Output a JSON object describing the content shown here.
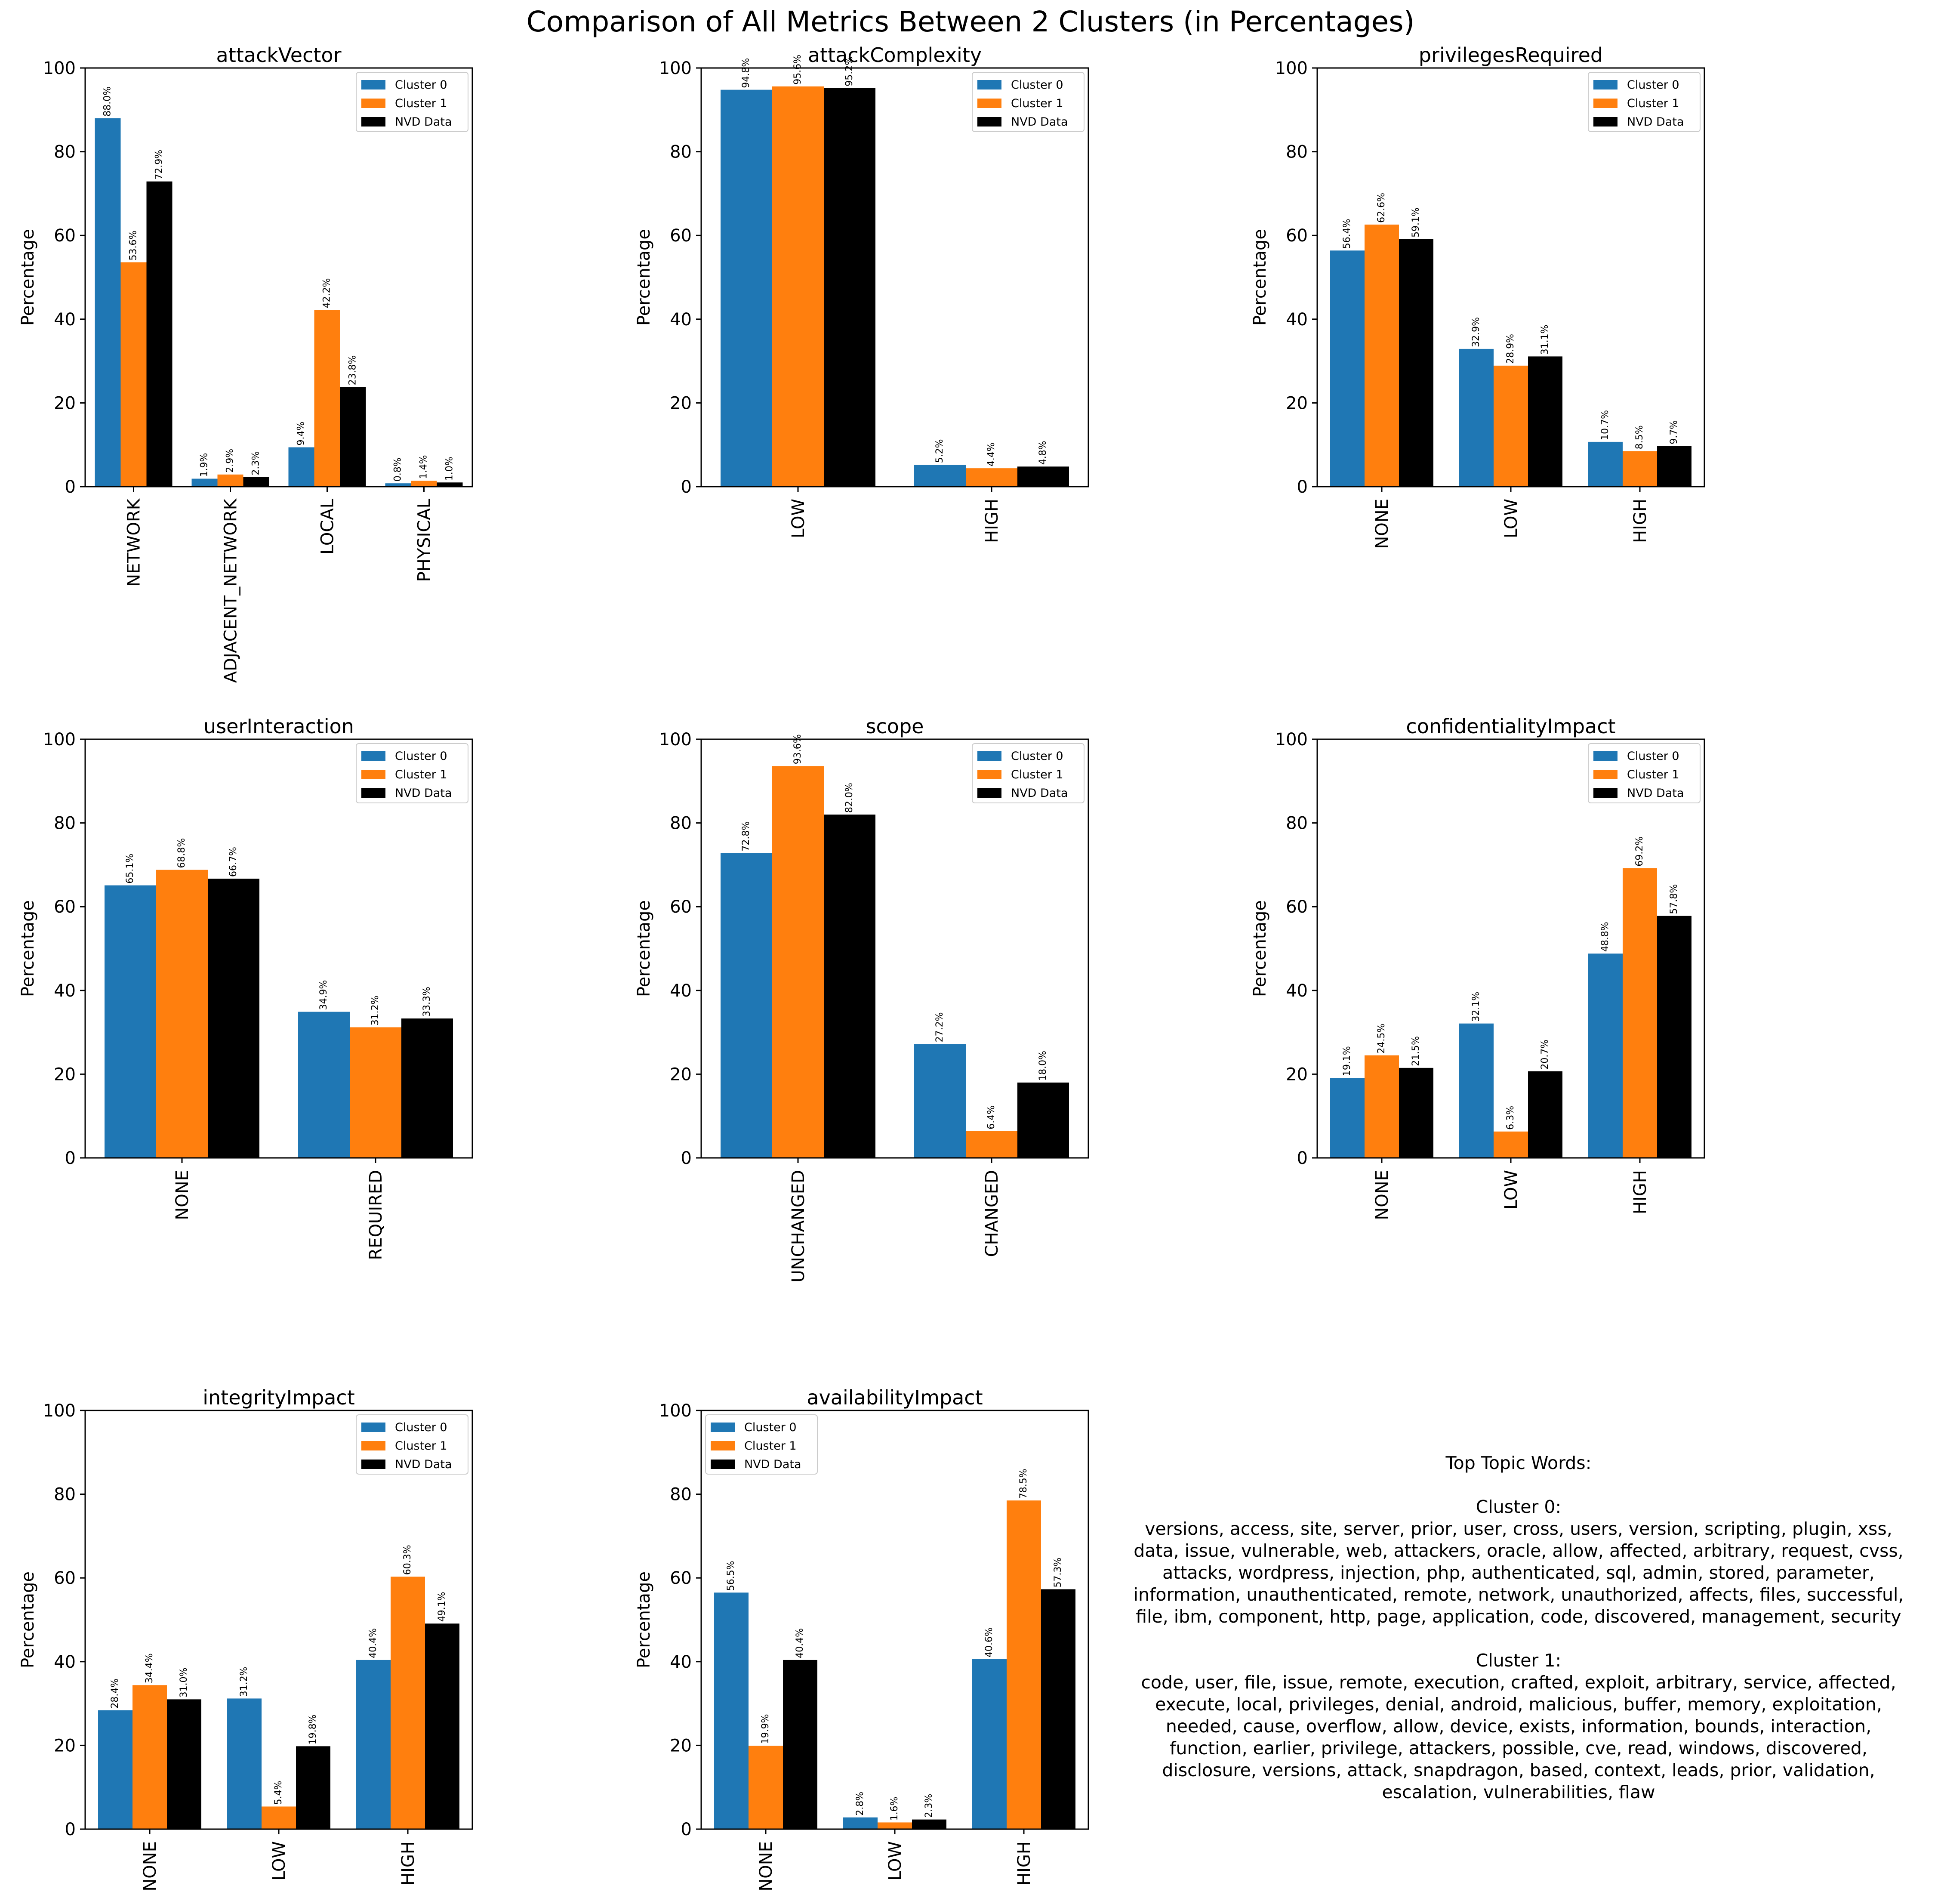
{
  "figure": {
    "title": "Comparison of All Metrics Between 2 Clusters (in Percentages)"
  },
  "colors": {
    "Cluster 0": "#1f77b4",
    "Cluster 1": "#ff7f0e",
    "NVD Data": "#000000"
  },
  "chart_data": [
    {
      "type": "bar",
      "title": "attackVector",
      "ylabel": "Percentage",
      "ylim": [
        0,
        100
      ],
      "yticks": [
        0,
        20,
        40,
        60,
        80,
        100
      ],
      "legend": "upper right",
      "categories": [
        "NETWORK",
        "ADJACENT_NETWORK",
        "LOCAL",
        "PHYSICAL"
      ],
      "series": [
        {
          "name": "Cluster 0",
          "values": [
            88.0,
            1.9,
            9.4,
            0.8
          ]
        },
        {
          "name": "Cluster 1",
          "values": [
            53.6,
            2.9,
            42.2,
            1.4
          ]
        },
        {
          "name": "NVD Data",
          "values": [
            72.9,
            2.3,
            23.8,
            1.0
          ]
        }
      ]
    },
    {
      "type": "bar",
      "title": "attackComplexity",
      "ylabel": "Percentage",
      "ylim": [
        0,
        100
      ],
      "yticks": [
        0,
        20,
        40,
        60,
        80,
        100
      ],
      "legend": "upper right",
      "categories": [
        "LOW",
        "HIGH"
      ],
      "series": [
        {
          "name": "Cluster 0",
          "values": [
            94.8,
            5.2
          ]
        },
        {
          "name": "Cluster 1",
          "values": [
            95.6,
            4.4
          ]
        },
        {
          "name": "NVD Data",
          "values": [
            95.2,
            4.8
          ]
        }
      ]
    },
    {
      "type": "bar",
      "title": "privilegesRequired",
      "ylabel": "Percentage",
      "ylim": [
        0,
        100
      ],
      "yticks": [
        0,
        20,
        40,
        60,
        80,
        100
      ],
      "legend": "upper right",
      "categories": [
        "NONE",
        "LOW",
        "HIGH"
      ],
      "series": [
        {
          "name": "Cluster 0",
          "values": [
            56.4,
            32.9,
            10.7
          ]
        },
        {
          "name": "Cluster 1",
          "values": [
            62.6,
            28.9,
            8.5
          ]
        },
        {
          "name": "NVD Data",
          "values": [
            59.1,
            31.1,
            9.7
          ]
        }
      ]
    },
    {
      "type": "bar",
      "title": "userInteraction",
      "ylabel": "Percentage",
      "ylim": [
        0,
        100
      ],
      "yticks": [
        0,
        20,
        40,
        60,
        80,
        100
      ],
      "legend": "upper right",
      "categories": [
        "NONE",
        "REQUIRED"
      ],
      "series": [
        {
          "name": "Cluster 0",
          "values": [
            65.1,
            34.9
          ]
        },
        {
          "name": "Cluster 1",
          "values": [
            68.8,
            31.2
          ]
        },
        {
          "name": "NVD Data",
          "values": [
            66.7,
            33.3
          ]
        }
      ]
    },
    {
      "type": "bar",
      "title": "scope",
      "ylabel": "Percentage",
      "ylim": [
        0,
        100
      ],
      "yticks": [
        0,
        20,
        40,
        60,
        80,
        100
      ],
      "legend": "upper right",
      "categories": [
        "UNCHANGED",
        "CHANGED"
      ],
      "series": [
        {
          "name": "Cluster 0",
          "values": [
            72.8,
            27.2
          ]
        },
        {
          "name": "Cluster 1",
          "values": [
            93.6,
            6.4
          ]
        },
        {
          "name": "NVD Data",
          "values": [
            82.0,
            18.0
          ]
        }
      ]
    },
    {
      "type": "bar",
      "title": "confidentialityImpact",
      "ylabel": "Percentage",
      "ylim": [
        0,
        100
      ],
      "yticks": [
        0,
        20,
        40,
        60,
        80,
        100
      ],
      "legend": "upper right",
      "categories": [
        "NONE",
        "LOW",
        "HIGH"
      ],
      "series": [
        {
          "name": "Cluster 0",
          "values": [
            19.1,
            32.1,
            48.8
          ]
        },
        {
          "name": "Cluster 1",
          "values": [
            24.5,
            6.3,
            69.2
          ]
        },
        {
          "name": "NVD Data",
          "values": [
            21.5,
            20.7,
            57.8
          ]
        }
      ]
    },
    {
      "type": "bar",
      "title": "integrityImpact",
      "ylabel": "Percentage",
      "ylim": [
        0,
        100
      ],
      "yticks": [
        0,
        20,
        40,
        60,
        80,
        100
      ],
      "legend": "upper right",
      "categories": [
        "NONE",
        "LOW",
        "HIGH"
      ],
      "series": [
        {
          "name": "Cluster 0",
          "values": [
            28.4,
            31.2,
            40.4
          ]
        },
        {
          "name": "Cluster 1",
          "values": [
            34.4,
            5.4,
            60.3
          ]
        },
        {
          "name": "NVD Data",
          "values": [
            31.0,
            19.8,
            49.1
          ]
        }
      ]
    },
    {
      "type": "bar",
      "title": "availabilityImpact",
      "ylabel": "Percentage",
      "ylim": [
        0,
        100
      ],
      "yticks": [
        0,
        20,
        40,
        60,
        80,
        100
      ],
      "legend": "upper left",
      "categories": [
        "NONE",
        "LOW",
        "HIGH"
      ],
      "series": [
        {
          "name": "Cluster 0",
          "values": [
            56.5,
            2.8,
            40.6
          ]
        },
        {
          "name": "Cluster 1",
          "values": [
            19.9,
            1.6,
            78.5
          ]
        },
        {
          "name": "NVD Data",
          "values": [
            40.4,
            2.3,
            57.3
          ]
        }
      ]
    }
  ],
  "topics": {
    "heading": "Top Topic Words:",
    "clusters": [
      {
        "label": "Cluster 0:",
        "lines": [
          "versions,  access,  site,  server,  prior,  user,  cross,  users,  version,  scripting,  plugin,  xss,",
          "data,  issue,  vulnerable,  web,  attackers,  oracle,  allow,  affected,  arbitrary,  request,  cvss,",
          "attacks,  wordpress,  injection,  php,  authenticated,  sql,  admin,  stored,  parameter,",
          "information,  unauthenticated,  remote,  network,  unauthorized,  affects,  files,  successful,",
          "file,  ibm,  component,  http,  page,  application,  code,  discovered,  management,  security"
        ]
      },
      {
        "label": "Cluster 1:",
        "lines": [
          "code,  user,  file,  issue,  remote,  execution,  crafted,  exploit,  arbitrary,  service,  affected,",
          "execute,  local,  privileges,  denial,  android,  malicious,  buffer,  memory,  exploitation,",
          "needed,  cause,  overflow,  allow,  device,  exists,  information,  bounds,  interaction,",
          "function,  earlier,  privilege,  attackers,  possible,  cve,  read,  windows,  discovered,",
          "disclosure,  versions,  attack,  snapdragon,  based,  context,  leads,  prior,  validation,",
          "escalation,  vulnerabilities,  flaw"
        ]
      }
    ]
  }
}
